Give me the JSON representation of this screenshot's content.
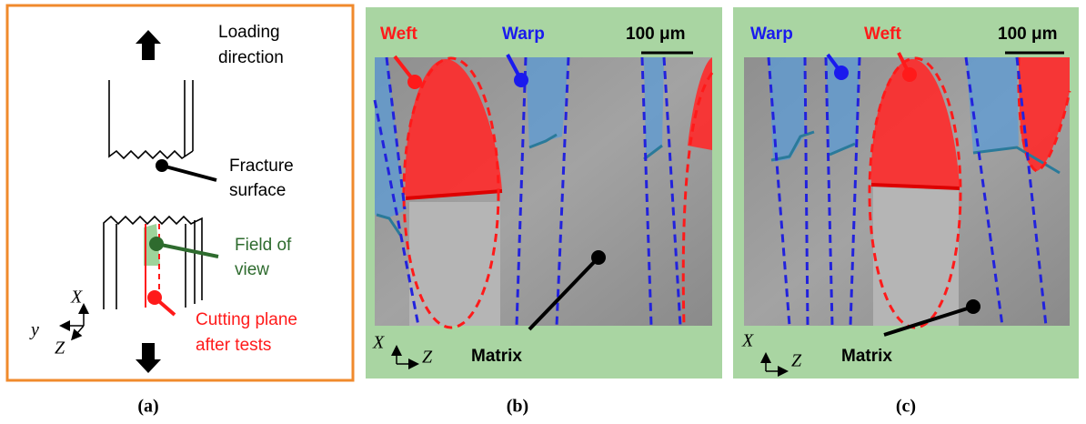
{
  "panel_a": {
    "caption": "(a)",
    "loading_direction": [
      "Loading",
      "direction"
    ],
    "fracture_surface": [
      "Fracture",
      "surface"
    ],
    "field_of_view": [
      "Field of",
      "view"
    ],
    "cutting_plane": [
      "Cutting plane",
      "after tests"
    ],
    "axis_x": "X",
    "axis_y": "y",
    "axis_z": "Z"
  },
  "panel_b": {
    "caption": "(b)",
    "weft": "Weft",
    "warp": "Warp",
    "scale_bar": "100 μm",
    "matrix": "Matrix",
    "axis_x": "X",
    "axis_z": "Z"
  },
  "panel_c": {
    "caption": "(c)",
    "warp": "Warp",
    "weft": "Weft",
    "scale_bar": "100 μm",
    "matrix": "Matrix",
    "axis_x": "X",
    "axis_z": "Z"
  }
}
